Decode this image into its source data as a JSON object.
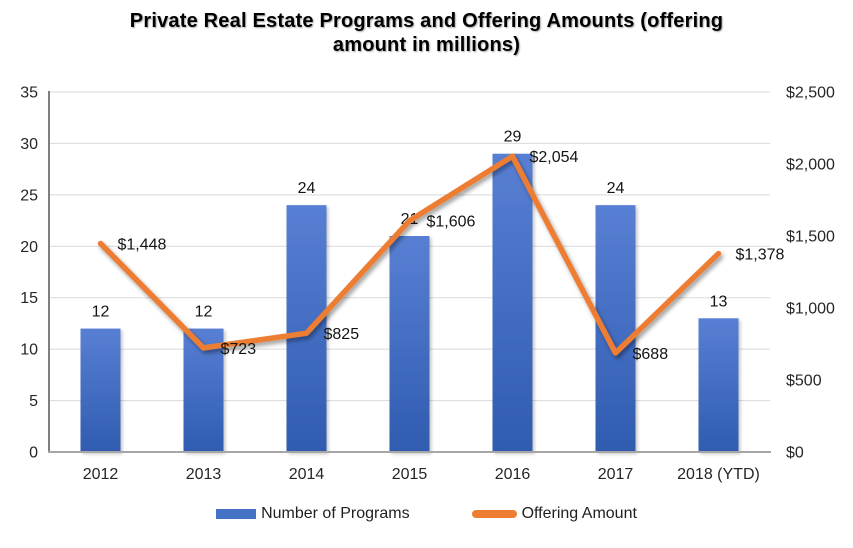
{
  "title": {
    "lines": [
      "Private Real Estate Programs and Offering Amounts (offering",
      "amount in millions)"
    ]
  },
  "chart_data": {
    "type": "combo-bar-line",
    "title": "Private Real Estate Programs and Offering Amounts (offering amount in millions)",
    "categories": [
      "2012",
      "2013",
      "2014",
      "2015",
      "2016",
      "2017",
      "2018 (YTD)"
    ],
    "series": [
      {
        "name": "Number of Programs",
        "type": "bar",
        "axis": "left",
        "values": [
          12,
          12,
          24,
          21,
          29,
          24,
          13
        ],
        "labels": [
          "12",
          "12",
          "24",
          "21",
          "29",
          "24",
          "13"
        ],
        "color": "#4472C4"
      },
      {
        "name": "Offering Amount",
        "type": "line",
        "axis": "right",
        "values": [
          1448,
          723,
          825,
          1606,
          2054,
          688,
          1378
        ],
        "labels": [
          "$1,448",
          "$723",
          "$825",
          "$1,606",
          "$2,054",
          "$688",
          "$1,378"
        ],
        "color": "#ED7D31"
      }
    ],
    "left_axis": {
      "min": 0,
      "max": 35,
      "step": 5,
      "ticks": [
        "35",
        "30",
        "25",
        "20",
        "15",
        "10",
        "5",
        "0"
      ]
    },
    "right_axis": {
      "min": 0,
      "max": 2500,
      "step": 500,
      "ticks": [
        "$2,500",
        "$2,000",
        "$1,500",
        "$1,000",
        "$500",
        "$0"
      ]
    },
    "grid": true,
    "legend_position": "bottom"
  },
  "legend": [
    {
      "label": "Number of Programs",
      "swatch": "bar"
    },
    {
      "label": "Offering Amount",
      "swatch": "line"
    }
  ],
  "colors": {
    "bar_flat": "#4472C4",
    "bar_top": "#587fd3",
    "bar_bottom": "#2f5cb0",
    "line": "#ED7D31",
    "grid": "#d9d9d9",
    "axis_left": "#7f7f7f",
    "axis_bottom": "#a6a6a6",
    "tick_text": "#262626"
  }
}
